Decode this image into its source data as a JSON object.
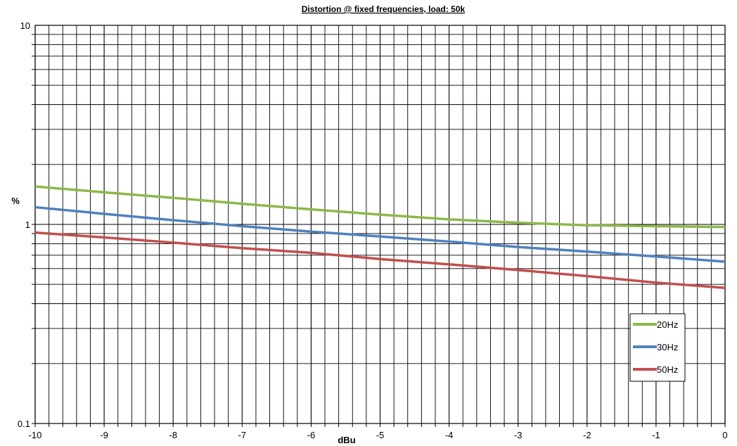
{
  "chart_data": {
    "type": "line",
    "title": "Distortion @ fixed frequencies, load: 50k",
    "xlabel": "dBu",
    "ylabel": "%",
    "x_scale": "linear",
    "y_scale": "log",
    "xlim": [
      -10,
      0
    ],
    "ylim": [
      0.1,
      10
    ],
    "x_ticks": [
      "-10",
      "-9",
      "-8",
      "-7",
      "-6",
      "-5",
      "-4",
      "-3",
      "-2",
      "-1",
      "0"
    ],
    "y_ticks": [
      "0.1",
      "1",
      "10"
    ],
    "grid": true,
    "legend_position": "bottom-right",
    "series": [
      {
        "name": "20Hz",
        "color": "#8db84a",
        "x": [
          -10,
          -9,
          -8,
          -7,
          -6,
          -5,
          -4,
          -3,
          -2,
          -1,
          0
        ],
        "y": [
          1.55,
          1.45,
          1.36,
          1.27,
          1.19,
          1.12,
          1.06,
          1.02,
          0.99,
          0.98,
          0.97
        ]
      },
      {
        "name": "30Hz",
        "color": "#4f81bd",
        "x": [
          -10,
          -9,
          -8,
          -7,
          -6,
          -5,
          -4,
          -3,
          -2,
          -1,
          0
        ],
        "y": [
          1.22,
          1.13,
          1.05,
          0.98,
          0.92,
          0.87,
          0.82,
          0.77,
          0.73,
          0.69,
          0.65
        ]
      },
      {
        "name": "50Hz",
        "color": "#c0504d",
        "x": [
          -10,
          -9,
          -8,
          -7,
          -6,
          -5,
          -4,
          -3,
          -2,
          -1,
          0
        ],
        "y": [
          0.91,
          0.86,
          0.81,
          0.76,
          0.72,
          0.67,
          0.63,
          0.59,
          0.55,
          0.51,
          0.48
        ]
      }
    ]
  }
}
